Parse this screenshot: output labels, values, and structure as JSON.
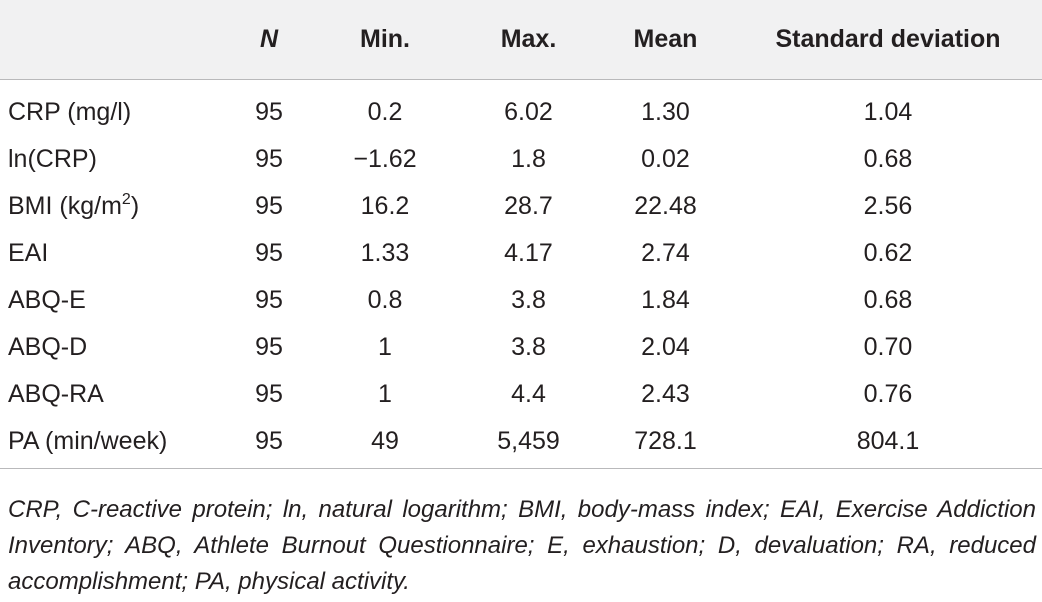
{
  "table": {
    "headers": [
      "",
      "N",
      "Min.",
      "Max.",
      "Mean",
      "Standard deviation"
    ],
    "rows": [
      {
        "label": "CRP (mg/l)",
        "label_sup": "",
        "label_after": "",
        "n": "95",
        "min": "0.2",
        "max": "6.02",
        "mean": "1.30",
        "sd": "1.04"
      },
      {
        "label": "ln(CRP)",
        "label_sup": "",
        "label_after": "",
        "n": "95",
        "min": "−1.62",
        "max": "1.8",
        "mean": "0.02",
        "sd": "0.68"
      },
      {
        "label": "BMI (kg/m",
        "label_sup": "2",
        "label_after": ")",
        "n": "95",
        "min": "16.2",
        "max": "28.7",
        "mean": "22.48",
        "sd": "2.56"
      },
      {
        "label": "EAI",
        "label_sup": "",
        "label_after": "",
        "n": "95",
        "min": "1.33",
        "max": "4.17",
        "mean": "2.74",
        "sd": "0.62"
      },
      {
        "label": "ABQ-E",
        "label_sup": "",
        "label_after": "",
        "n": "95",
        "min": "0.8",
        "max": "3.8",
        "mean": "1.84",
        "sd": "0.68"
      },
      {
        "label": "ABQ-D",
        "label_sup": "",
        "label_after": "",
        "n": "95",
        "min": "1",
        "max": "3.8",
        "mean": "2.04",
        "sd": "0.70"
      },
      {
        "label": "ABQ-RA",
        "label_sup": "",
        "label_after": "",
        "n": "95",
        "min": "1",
        "max": "4.4",
        "mean": "2.43",
        "sd": "0.76"
      },
      {
        "label": "PA (min/week)",
        "label_sup": "",
        "label_after": "",
        "n": "95",
        "min": "49",
        "max": "5,459",
        "mean": "728.1",
        "sd": "804.1"
      }
    ]
  },
  "footnote": "CRP, C-reactive protein; ln, natural logarithm; BMI, body-mass index; EAI, Exercise Addiction Inventory; ABQ, Athlete Burnout Questionnaire; E, exhaustion; D, devaluation; RA, reduced accomplishment; PA, physical activity.",
  "colors": {
    "header_band": "#f1f1f2",
    "text": "#231f20",
    "rule": "#b9b9bb"
  }
}
